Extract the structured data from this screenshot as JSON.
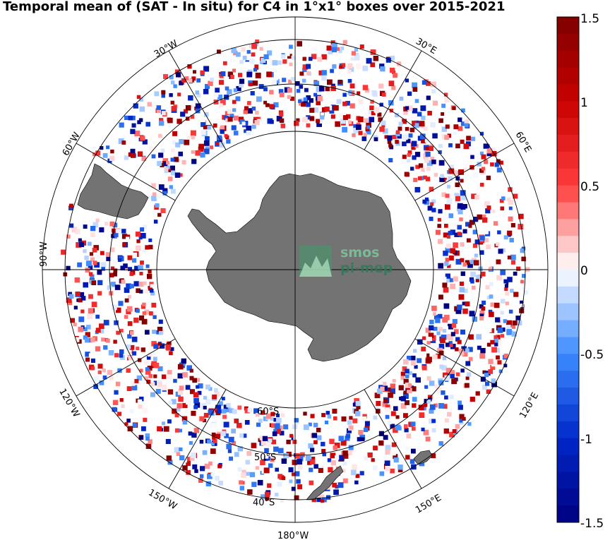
{
  "title": "Temporal mean of (SAT - In situ) for C4 in 1°x1° boxes over 2015-2021",
  "meridian_labels": {
    "lon_0": "",
    "lon_30e": "30°E",
    "lon_60e": "60°E",
    "lon_120e": "120°E",
    "lon_150e": "150°E",
    "lon_180w": "180°W",
    "lon_150w": "150°W",
    "lon_120w": "120°W",
    "lon_90w": "90°W",
    "lon_60w": "60°W",
    "lon_30w": "30°W"
  },
  "parallel_labels": {
    "lat_60s": "60°S",
    "lat_50s": "50°S",
    "lat_40s": "40°S"
  },
  "colorbar": {
    "ticks": [
      "1.5",
      "1",
      "0.5",
      "0",
      "-0.5",
      "-1",
      "-1.5"
    ],
    "min": -1.5,
    "max": 1.5,
    "colors": [
      "#00007f",
      "#0000c8",
      "#1e3cff",
      "#ff1e1e",
      "#b40000",
      "#7f0000"
    ]
  },
  "logo": {
    "line1": "smos",
    "line2": "pi-mep"
  },
  "colors": {
    "land": "#737373",
    "coastline": "#000000",
    "grid": "#000000"
  }
}
